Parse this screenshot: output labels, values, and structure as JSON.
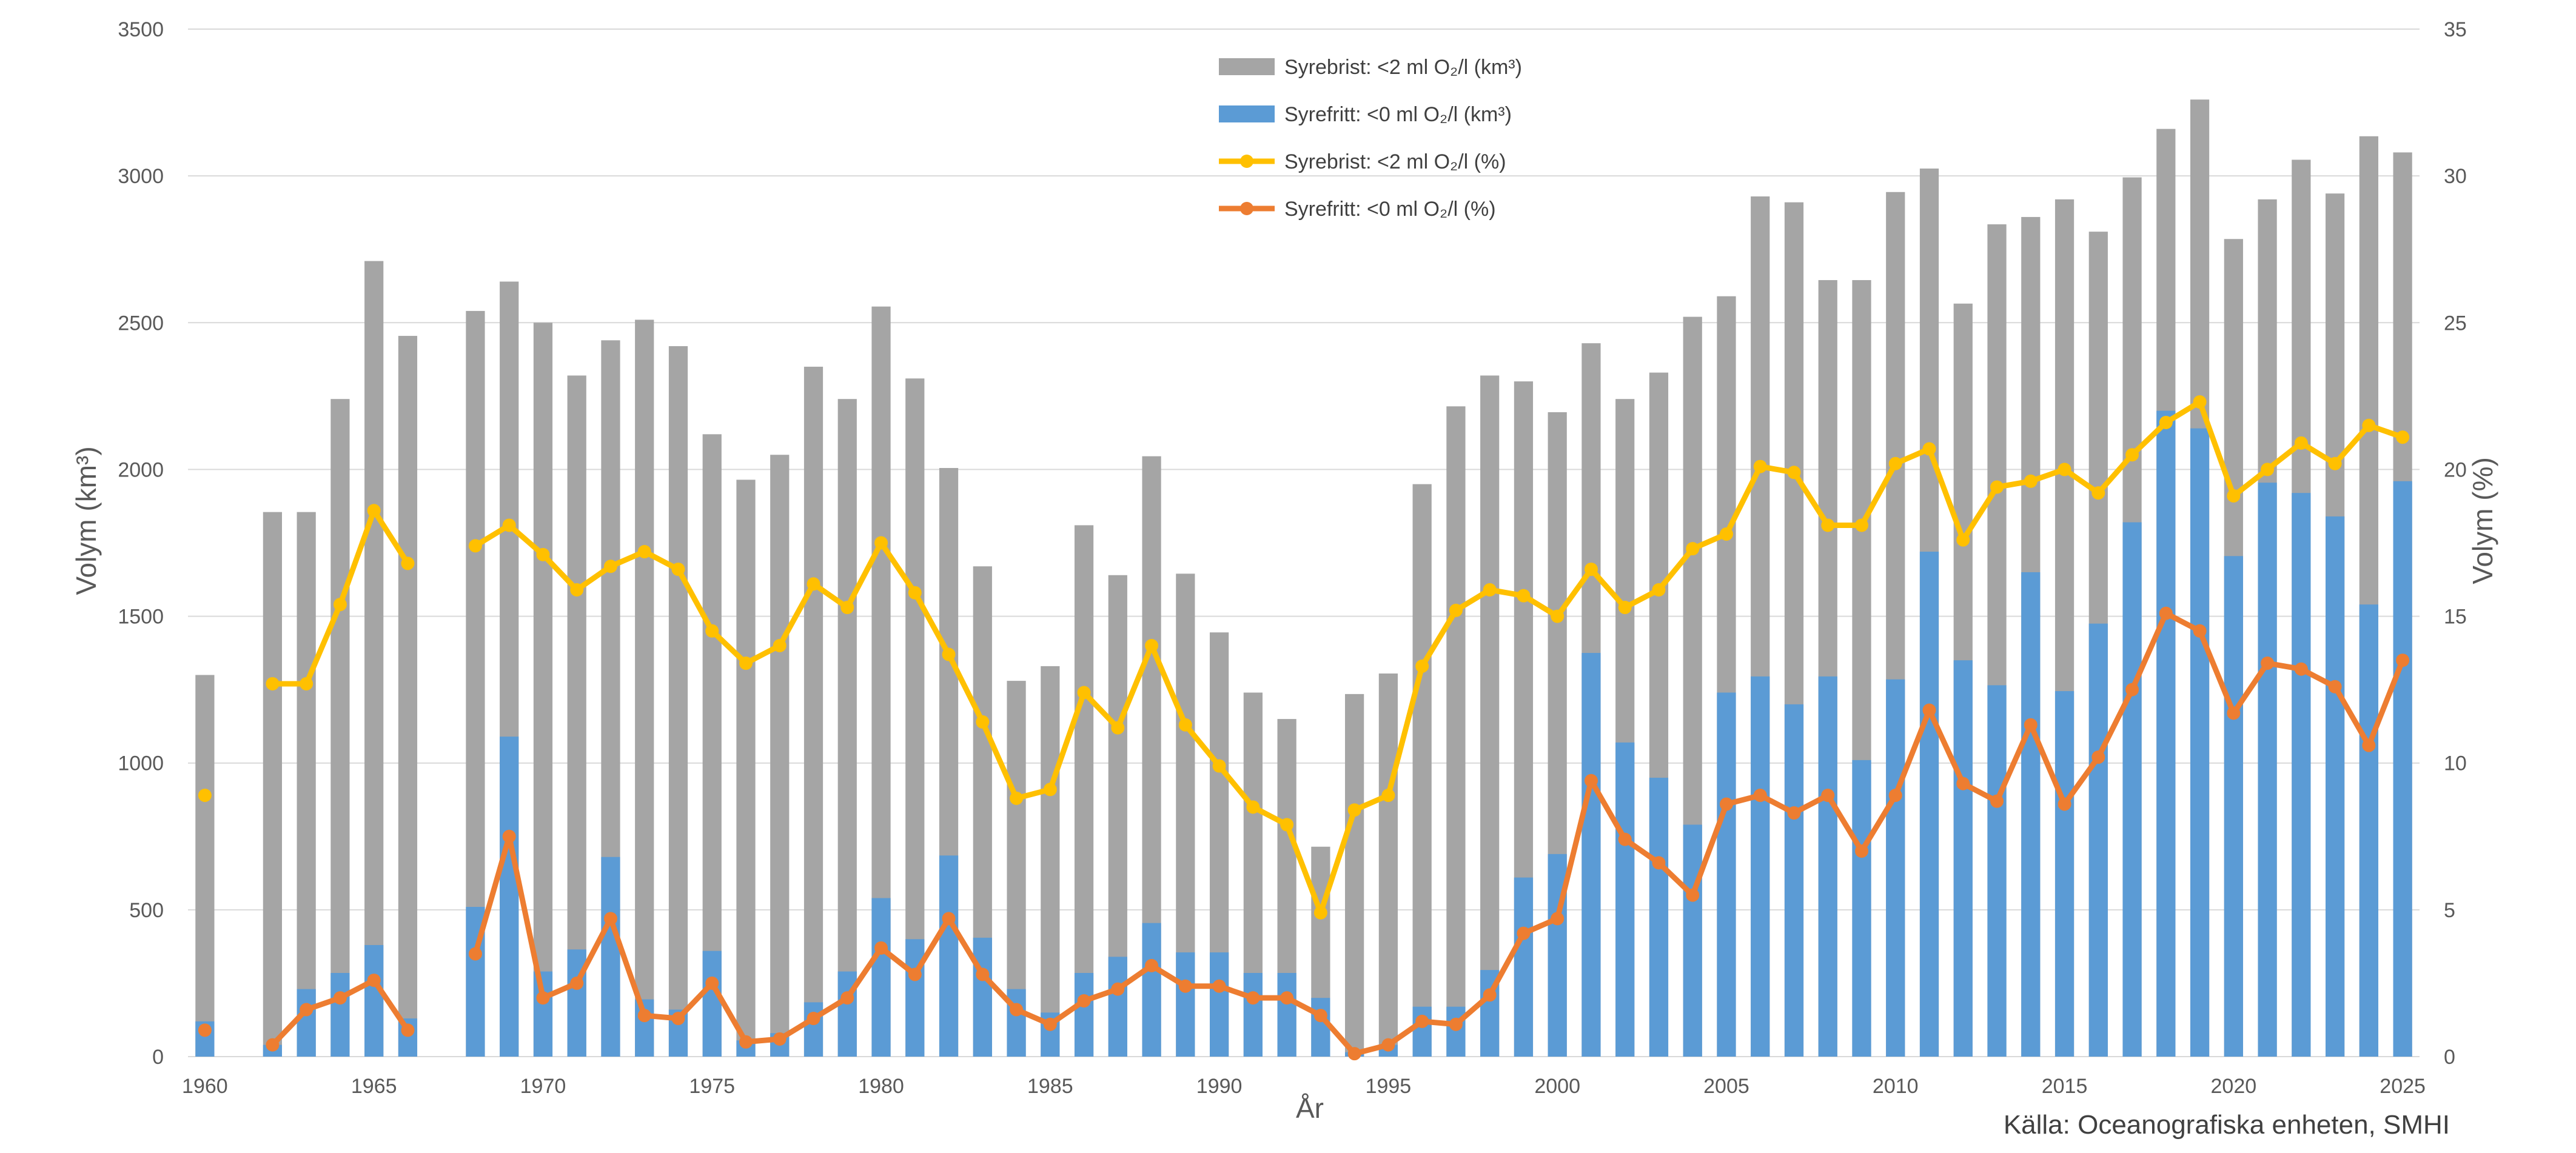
{
  "chart_data": {
    "type": "bar",
    "title": "",
    "xlabel": "År",
    "ylabel": "Volym (km³)",
    "y2label": "Volym (%)",
    "source": "Källa: Oceanografiska enheten, SMHI",
    "ylim": [
      0,
      3500
    ],
    "y2lim": [
      0,
      35
    ],
    "yticks": [
      "0",
      "500",
      "1000",
      "1500",
      "2000",
      "2500",
      "3000",
      "3500"
    ],
    "y2ticks": [
      "0",
      "5",
      "10",
      "15",
      "20",
      "25",
      "30",
      "35"
    ],
    "xticks": [
      "1960",
      "1965",
      "1970",
      "1975",
      "1980",
      "1985",
      "1990",
      "1995",
      "2000",
      "2005",
      "2010",
      "2015",
      "2020",
      "2025"
    ],
    "grid": true,
    "legend_position": "top-center",
    "x": [
      1960,
      1961,
      1962,
      1963,
      1964,
      1965,
      1966,
      1967,
      1968,
      1969,
      1970,
      1971,
      1972,
      1973,
      1974,
      1975,
      1976,
      1977,
      1978,
      1979,
      1980,
      1981,
      1982,
      1983,
      1984,
      1985,
      1986,
      1987,
      1988,
      1989,
      1990,
      1991,
      1992,
      1993,
      1994,
      1995,
      1996,
      1997,
      1998,
      1999,
      2000,
      2001,
      2002,
      2003,
      2004,
      2005,
      2006,
      2007,
      2008,
      2009,
      2010,
      2011,
      2012,
      2013,
      2014,
      2015,
      2016,
      2017,
      2018,
      2019,
      2020,
      2021,
      2022,
      2023,
      2024,
      2025
    ],
    "series": [
      {
        "name": "Syrebrist: <2 ml O₂/l (km³)",
        "type": "bar",
        "color": "#a5a5a5",
        "axis": "left",
        "values": [
          1300,
          null,
          1855,
          1855,
          2240,
          2710,
          2455,
          null,
          2540,
          2640,
          2500,
          2320,
          2440,
          2510,
          2420,
          2120,
          1965,
          2050,
          2350,
          2240,
          2555,
          2310,
          2005,
          1670,
          1280,
          1330,
          1810,
          1640,
          2045,
          1645,
          1445,
          1240,
          1150,
          715,
          1235,
          1305,
          1950,
          2215,
          2320,
          2300,
          2195,
          2430,
          2240,
          2330,
          2520,
          2590,
          2930,
          2910,
          2645,
          2645,
          2945,
          3025,
          2565,
          2835,
          2860,
          2920,
          2810,
          2995,
          3160,
          3260,
          2785,
          2920,
          3055,
          2940,
          3135,
          3080
        ]
      },
      {
        "name": "Syrefritt: <0 ml O₂/l (km³)",
        "type": "bar",
        "color": "#5b9bd5",
        "axis": "left",
        "values": [
          120,
          null,
          40,
          230,
          285,
          380,
          130,
          null,
          510,
          1090,
          290,
          365,
          680,
          195,
          160,
          360,
          55,
          80,
          185,
          290,
          540,
          400,
          685,
          405,
          230,
          150,
          285,
          340,
          455,
          355,
          355,
          285,
          285,
          200,
          15,
          40,
          170,
          170,
          295,
          610,
          690,
          1375,
          1070,
          950,
          790,
          1240,
          1295,
          1200,
          1295,
          1010,
          1285,
          1720,
          1350,
          1265,
          1650,
          1245,
          1475,
          1820,
          2200,
          2140,
          1705,
          1955,
          1920,
          1840,
          1540,
          1960
        ]
      },
      {
        "name": "Syrebrist: <2 ml O₂/l (%)",
        "type": "line",
        "color": "#ffc000",
        "axis": "right",
        "values": [
          8.9,
          null,
          12.7,
          12.7,
          15.4,
          18.6,
          16.8,
          null,
          17.4,
          18.1,
          17.1,
          15.9,
          16.7,
          17.2,
          16.6,
          14.5,
          13.4,
          14.0,
          16.1,
          15.3,
          17.5,
          15.8,
          13.7,
          11.4,
          8.8,
          9.1,
          12.4,
          11.2,
          14.0,
          11.3,
          9.9,
          8.5,
          7.9,
          4.9,
          8.4,
          8.9,
          13.3,
          15.2,
          15.9,
          15.7,
          15.0,
          16.6,
          15.3,
          15.9,
          17.3,
          17.8,
          20.1,
          19.9,
          18.1,
          18.1,
          20.2,
          20.7,
          17.6,
          19.4,
          19.6,
          20.0,
          19.2,
          20.5,
          21.6,
          22.3,
          19.1,
          20.0,
          20.9,
          20.2,
          21.5,
          21.1
        ]
      },
      {
        "name": "Syrefritt: <0 ml O₂/l (%)",
        "type": "line",
        "color": "#ed7d31",
        "axis": "right",
        "values": [
          0.9,
          null,
          0.4,
          1.6,
          2.0,
          2.6,
          0.9,
          null,
          3.5,
          7.5,
          2.0,
          2.5,
          4.7,
          1.4,
          1.3,
          2.5,
          0.5,
          0.6,
          1.3,
          2.0,
          3.7,
          2.8,
          4.7,
          2.8,
          1.6,
          1.1,
          1.9,
          2.3,
          3.1,
          2.4,
          2.4,
          2.0,
          2.0,
          1.4,
          0.1,
          0.4,
          1.2,
          1.1,
          2.1,
          4.2,
          4.7,
          9.4,
          7.4,
          6.6,
          5.5,
          8.6,
          8.9,
          8.3,
          8.9,
          7.0,
          8.9,
          11.8,
          9.3,
          8.7,
          11.3,
          8.6,
          10.2,
          12.5,
          15.1,
          14.5,
          11.7,
          13.4,
          13.2,
          12.6,
          10.6,
          13.5
        ]
      }
    ]
  }
}
